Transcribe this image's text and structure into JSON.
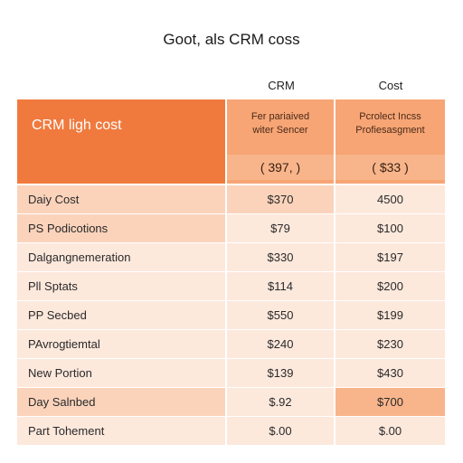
{
  "title": "Goot, als CRM coss",
  "columns": {
    "crm": "CRM",
    "cost": "Cost"
  },
  "header": {
    "left_label": "CRM ligh cost",
    "col1_sub": "Fer pariaived\nwiter Sencer",
    "col2_sub": "Pcrolect Incss\nProfiesasgment",
    "col1_price": "( 397, )",
    "col2_price": "( $33 )"
  },
  "rows": [
    {
      "name": "Daiy Cost",
      "v1": "$370",
      "v2": "4500"
    },
    {
      "name": "PS Podicotions",
      "v1": "$79",
      "v2": "$100"
    },
    {
      "name": "Dalgangnemeration",
      "v1": "$330",
      "v2": "$197"
    },
    {
      "name": "Pll Sptats",
      "v1": "$114",
      "v2": "$200"
    },
    {
      "name": "PP Secbed",
      "v1": "$550",
      "v2": "$199"
    },
    {
      "name": "PAvrogtiemtal",
      "v1": "$240",
      "v2": "$230"
    },
    {
      "name": "New Portion",
      "v1": "$139",
      "v2": "$430"
    },
    {
      "name": "Day Salnbed",
      "v1": "$.92",
      "v2": "$700"
    },
    {
      "name": "Part Tohement",
      "v1": "$.00",
      "v2": "$.00"
    }
  ],
  "colors": {
    "header_orange": "#f07a3e",
    "header_light": "#f7a575",
    "row_peach": "#fbd3bb",
    "row_light": "#fde8dc",
    "highlight": "#f8b48a"
  }
}
